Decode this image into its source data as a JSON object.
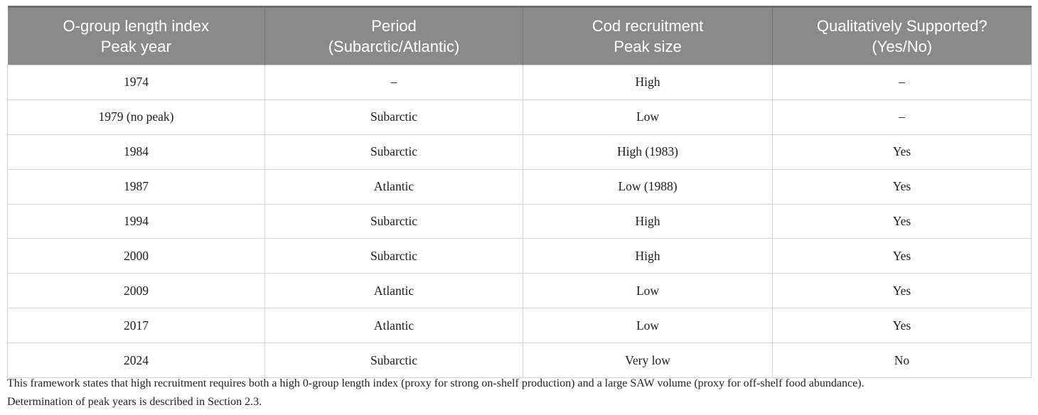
{
  "table": {
    "columns": [
      {
        "line1": "O-group length index",
        "line2": "Peak year"
      },
      {
        "line1": "Period",
        "line2": "(Subarctic/Atlantic)"
      },
      {
        "line1": "Cod recruitment",
        "line2": "Peak size"
      },
      {
        "line1": "Qualitatively Supported?",
        "line2": "(Yes/No)"
      }
    ],
    "rows": [
      [
        "1974",
        "–",
        "High",
        "–"
      ],
      [
        "1979 (no peak)",
        "Subarctic",
        "Low",
        "–"
      ],
      [
        "1984",
        "Subarctic",
        "High (1983)",
        "Yes"
      ],
      [
        "1987",
        "Atlantic",
        "Low (1988)",
        "Yes"
      ],
      [
        "1994",
        "Subarctic",
        "High",
        "Yes"
      ],
      [
        "2000",
        "Subarctic",
        "High",
        "Yes"
      ],
      [
        "2009",
        "Atlantic",
        "Low",
        "Yes"
      ],
      [
        "2017",
        "Atlantic",
        "Low",
        "Yes"
      ],
      [
        "2024",
        "Subarctic",
        "Very low",
        "No"
      ]
    ]
  },
  "footnote": {
    "line1": "This framework states that high recruitment requires both a high 0-group length index (proxy for strong on-shelf production) and a large SAW volume (proxy for off-shelf food abundance).",
    "line2": "Determination of peak years is described in Section 2.3."
  },
  "colors": {
    "header_bg": "#8a8a8a",
    "header_text": "#ffffff",
    "header_divider": "#757575",
    "header_top_edge": "#6e6e6e",
    "cell_border": "#d3d3d3",
    "body_text": "#1c1c1c",
    "footnote_text": "#222222"
  }
}
